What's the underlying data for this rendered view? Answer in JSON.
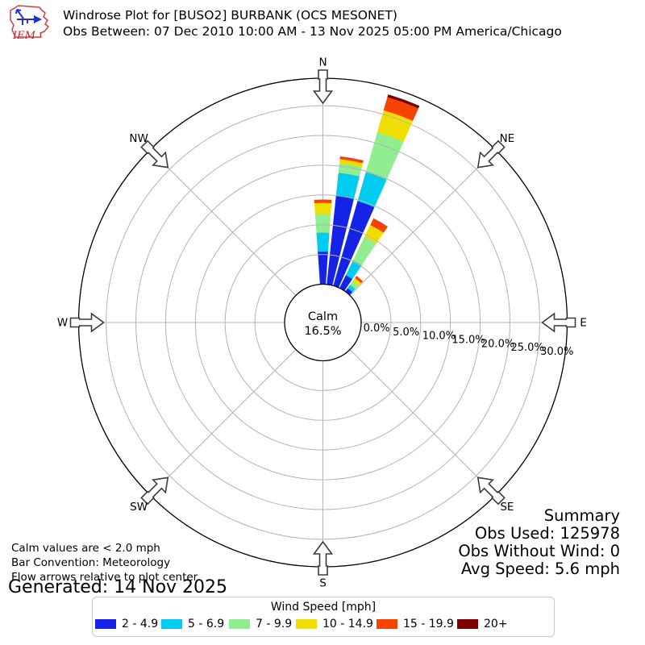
{
  "header": {
    "logo_text": "IEM",
    "title": "Windrose Plot for [BUSO2] BURBANK (OCS MESONET)",
    "subtitle": "Obs Between: 07 Dec 2010 10:00 AM - 13 Nov 2025 05:00 PM America/Chicago"
  },
  "chart_data": {
    "type": "windrose",
    "units": "mph",
    "calm_label": "Calm",
    "calm_percent_label": "16.5%",
    "calm_percent": 16.5,
    "radial_ticks_percent": [
      0,
      5,
      10,
      15,
      20,
      25,
      30
    ],
    "radial_tick_labels": [
      "0.0%",
      "5.0%",
      "10.0%",
      "15.0%",
      "20.0%",
      "25.0%",
      "30.0%"
    ],
    "compass_points": [
      "N",
      "NE",
      "E",
      "SE",
      "S",
      "SW",
      "W",
      "NW"
    ],
    "sector_width_deg": 8,
    "speed_bins": [
      {
        "label": "2 - 4.9",
        "color": "#1423e6"
      },
      {
        "label": "5 - 6.9",
        "color": "#00cbf0"
      },
      {
        "label": "7 - 9.9",
        "color": "#90ee90"
      },
      {
        "label": "10 - 14.9",
        "color": "#f0de00"
      },
      {
        "label": "15 - 19.9",
        "color": "#f54300"
      },
      {
        "label": "20+",
        "color": "#7d0000"
      }
    ],
    "bars": [
      {
        "direction_deg": 0,
        "segments_percent": [
          5.5,
          3.2,
          3.1,
          1.9,
          0.5,
          0
        ],
        "total_percent": 14.2
      },
      {
        "direction_deg": 10,
        "segments_percent": [
          15.1,
          3.8,
          1.6,
          0.7,
          0.4,
          0
        ],
        "total_percent": 21.6
      },
      {
        "direction_deg": 20,
        "segments_percent": [
          14.8,
          5.1,
          7.0,
          3.8,
          2.3,
          0.4
        ],
        "total_percent": 33.4
      },
      {
        "direction_deg": 30,
        "segments_percent": [
          2.4,
          2.8,
          4.4,
          2.2,
          1.2,
          0
        ],
        "total_percent": 13.0
      },
      {
        "direction_deg": 40,
        "segments_percent": [
          0.7,
          0.7,
          0.8,
          0.6,
          0.4,
          0
        ],
        "total_percent": 3.2
      }
    ],
    "legend_position": "bottom",
    "grid": true
  },
  "summary": {
    "title": "Summary",
    "obs_used": "Obs Used: 125978",
    "obs_without_wind": "Obs Without Wind: 0",
    "avg_speed": "Avg Speed: 5.6 mph"
  },
  "notes": [
    "Calm values are < 2.0 mph",
    "Bar Convention: Meteorology",
    "Flow arrows relative to plot center."
  ],
  "generated": "Generated: 14 Nov 2025",
  "legend": {
    "title": "Wind Speed [mph]"
  }
}
